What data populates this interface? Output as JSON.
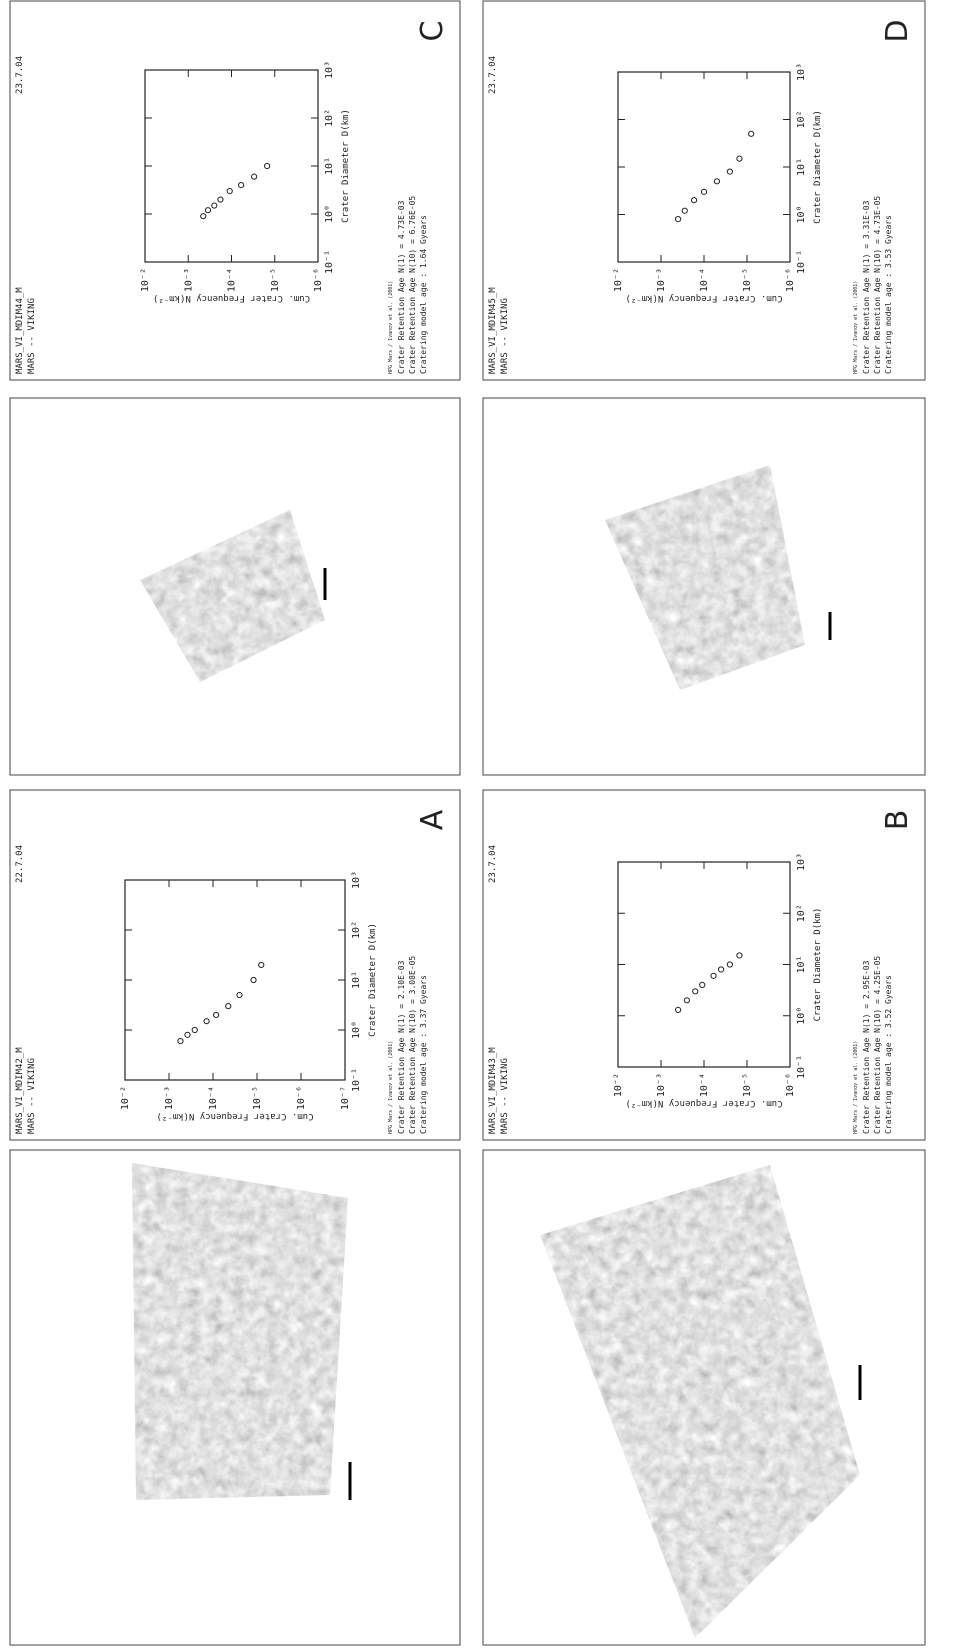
{
  "panels": [
    {
      "label": "A",
      "title": "MARS_VI_MDIM42_M",
      "subtitle": "MARS -- VIKING",
      "date": "22.7.04",
      "reference": "HPG Mars / Ivanov et al. (2001)",
      "info": [
        "Crater Retention Age N(1) = 2.10E-03",
        "Crater Retention Age N(10) = 3.08E-05",
        "Cratering model age : 3.37 Gyears"
      ],
      "plot": {
        "type": "scatter",
        "xlabel": "Crater Diameter D(km)",
        "ylabel": "Cum. Crater Frequency N(km⁻²)",
        "xscale": "log",
        "yscale": "log",
        "xlim": [
          0.1,
          1000
        ],
        "ylim": [
          1e-07,
          0.01
        ],
        "xticks": [
          {
            "value": 0.1,
            "label": "10⁻¹"
          },
          {
            "value": 1,
            "label": "10⁰"
          },
          {
            "value": 10,
            "label": "10¹"
          },
          {
            "value": 100,
            "label": "10²"
          },
          {
            "value": 1000,
            "label": "10³"
          }
        ],
        "yticks": [
          {
            "value": 0.01,
            "label": "10⁻²"
          },
          {
            "value": 0.001,
            "label": "10⁻³"
          },
          {
            "value": 0.0001,
            "label": "10⁻⁴"
          },
          {
            "value": 1e-05,
            "label": "10⁻⁵"
          },
          {
            "value": 1e-06,
            "label": "10⁻⁶"
          },
          {
            "value": 1e-07,
            "label": "10⁻⁷"
          }
        ],
        "x": [
          0.6,
          0.8,
          1.0,
          1.5,
          2,
          3,
          5,
          10,
          20
        ],
        "y": [
          0.00055,
          0.00038,
          0.00026,
          0.00014,
          8.5e-05,
          4.5e-05,
          2.5e-05,
          1.2e-05,
          8e-06
        ],
        "color": "#222222"
      }
    },
    {
      "label": "B",
      "title": "MARS_VI_MDIM43_M",
      "subtitle": "MARS -- VIKING",
      "date": "23.7.04",
      "reference": "HPG Mars / Ivanov et al. (2001)",
      "info": [
        "Crater Retention Age N(1) = 2.95E-03",
        "Crater Retention Age N(10) = 4.25E-05",
        "Cratering model age : 3.52 Gyears"
      ],
      "plot": {
        "type": "scatter",
        "xlabel": "Crater Diameter D(km)",
        "ylabel": "Cum. Crater Frequency N(km⁻²)",
        "xscale": "log",
        "yscale": "log",
        "xlim": [
          0.1,
          1000
        ],
        "ylim": [
          1e-06,
          0.01
        ],
        "xticks": [
          {
            "value": 0.1,
            "label": "10⁻¹"
          },
          {
            "value": 1,
            "label": "10⁰"
          },
          {
            "value": 10,
            "label": "10¹"
          },
          {
            "value": 100,
            "label": "10²"
          },
          {
            "value": 1000,
            "label": "10³"
          }
        ],
        "yticks": [
          {
            "value": 0.01,
            "label": "10⁻²"
          },
          {
            "value": 0.001,
            "label": "10⁻³"
          },
          {
            "value": 0.0001,
            "label": "10⁻⁴"
          },
          {
            "value": 1e-05,
            "label": "10⁻⁵"
          },
          {
            "value": 1e-06,
            "label": "10⁻⁶"
          }
        ],
        "x": [
          1.3,
          2,
          3,
          4,
          6,
          8,
          10,
          15
        ],
        "y": [
          0.0004,
          0.00025,
          0.00016,
          0.00011,
          6e-05,
          4e-05,
          2.5e-05,
          1.5e-05
        ],
        "color": "#222222"
      }
    },
    {
      "label": "C",
      "title": "MARS_VI_MDIM44_M",
      "subtitle": "MARS -- VIKING",
      "date": "23.7.04",
      "reference": "HPG Mars / Ivanov et al. (2001)",
      "info": [
        "Crater Retention Age N(1) = 4.73E-03",
        "Crater Retention Age N(10) = 6.76E-05",
        "Cratering model age : 1.64 Gyears"
      ],
      "plot": {
        "type": "scatter",
        "xlabel": "Crater Diameter D(km)",
        "ylabel": "Cum. Crater Frequency N(km⁻²)",
        "xscale": "log",
        "yscale": "log",
        "xlim": [
          0.1,
          1000
        ],
        "ylim": [
          1e-06,
          0.01
        ],
        "xticks": [
          {
            "value": 0.1,
            "label": "10⁻¹"
          },
          {
            "value": 1,
            "label": "10⁰"
          },
          {
            "value": 10,
            "label": "10¹"
          },
          {
            "value": 100,
            "label": "10²"
          },
          {
            "value": 1000,
            "label": "10³"
          }
        ],
        "yticks": [
          {
            "value": 0.01,
            "label": "10⁻²"
          },
          {
            "value": 0.001,
            "label": "10⁻³"
          },
          {
            "value": 0.0001,
            "label": "10⁻⁴"
          },
          {
            "value": 1e-05,
            "label": "10⁻⁵"
          },
          {
            "value": 1e-06,
            "label": "10⁻⁶"
          }
        ],
        "x": [
          0.9,
          1.2,
          1.5,
          2,
          3,
          4,
          6,
          10
        ],
        "y": [
          0.00045,
          0.00035,
          0.00025,
          0.00018,
          0.00011,
          6e-05,
          3e-05,
          1.5e-05
        ],
        "color": "#222222"
      }
    },
    {
      "label": "D",
      "title": "MARS_VI_MDIM45_M",
      "subtitle": "MARS -- VIKING",
      "date": "23.7.04",
      "reference": "HPG Mars / Ivanov et al. (2001)",
      "info": [
        "Crater Retention Age N(1) = 3.31E-03",
        "Crater Retention Age N(10) = 4.73E-05",
        "Cratering model age : 3.53 Gyears"
      ],
      "plot": {
        "type": "scatter",
        "xlabel": "Crater Diameter D(km)",
        "ylabel": "Cum. Crater Frequency N(km⁻²)",
        "xscale": "log",
        "yscale": "log",
        "xlim": [
          0.1,
          1000
        ],
        "ylim": [
          1e-06,
          0.01
        ],
        "xticks": [
          {
            "value": 0.1,
            "label": "10⁻¹"
          },
          {
            "value": 1,
            "label": "10⁰"
          },
          {
            "value": 10,
            "label": "10¹"
          },
          {
            "value": 100,
            "label": "10²"
          },
          {
            "value": 1000,
            "label": "10³"
          }
        ],
        "yticks": [
          {
            "value": 0.01,
            "label": "10⁻²"
          },
          {
            "value": 0.001,
            "label": "10⁻³"
          },
          {
            "value": 0.0001,
            "label": "10⁻⁴"
          },
          {
            "value": 1e-05,
            "label": "10⁻⁵"
          },
          {
            "value": 1e-06,
            "label": "10⁻⁶"
          }
        ],
        "x": [
          0.8,
          1.2,
          2,
          3,
          5,
          8,
          15,
          50
        ],
        "y": [
          0.0004,
          0.00028,
          0.00017,
          0.0001,
          5e-05,
          2.5e-05,
          1.5e-05,
          8e-06
        ],
        "color": "#222222"
      }
    }
  ]
}
